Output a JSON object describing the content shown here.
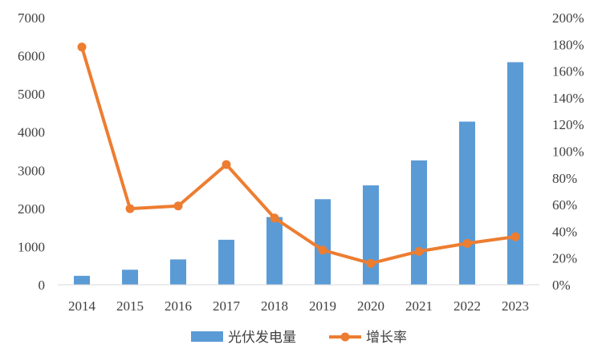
{
  "chart_data": {
    "type": "bar",
    "categories": [
      "2014",
      "2015",
      "2016",
      "2017",
      "2018",
      "2019",
      "2020",
      "2021",
      "2022",
      "2023"
    ],
    "series": [
      {
        "name": "光伏发电量",
        "type": "bar",
        "axis": "left",
        "color": "#5B9BD5",
        "values": [
          235,
          395,
          665,
          1180,
          1775,
          2243,
          2605,
          3259,
          4276,
          5833
        ]
      },
      {
        "name": "增长率",
        "type": "line",
        "axis": "right",
        "color": "#ED7D31",
        "values": [
          1.78,
          0.57,
          0.59,
          0.9,
          0.5,
          0.26,
          0.16,
          0.25,
          0.31,
          0.36
        ]
      }
    ],
    "y_left": {
      "range": [
        0,
        7000
      ],
      "ticks": [
        "0",
        "1000",
        "2000",
        "3000",
        "4000",
        "5000",
        "6000",
        "7000"
      ]
    },
    "y_right": {
      "range": [
        0,
        2.0
      ],
      "ticks": [
        "0%",
        "20%",
        "40%",
        "60%",
        "80%",
        "100%",
        "120%",
        "140%",
        "160%",
        "180%",
        "200%"
      ]
    },
    "grid": false,
    "legend_position": "bottom"
  }
}
